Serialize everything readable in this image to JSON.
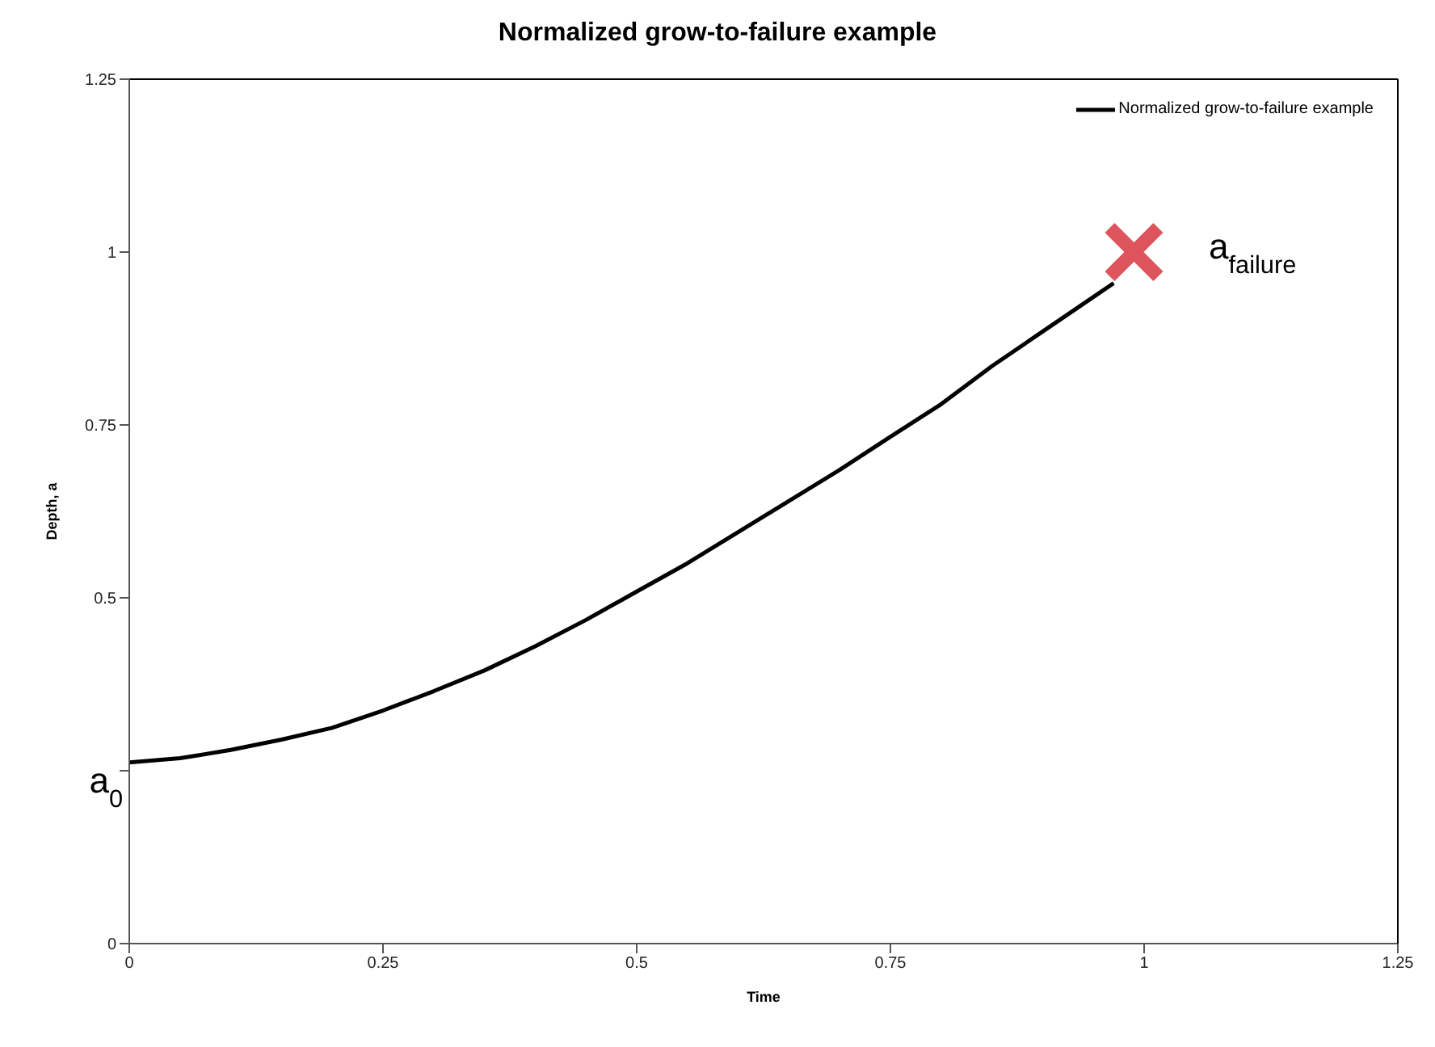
{
  "chart_data": {
    "type": "line",
    "title": "Normalized grow-to-failure example",
    "xlabel": "Time",
    "ylabel": "Depth, a",
    "xlim": [
      0,
      1.25
    ],
    "xticks": [
      0,
      0.25,
      0.5,
      0.75,
      1,
      1.25
    ],
    "ylim": [
      0,
      1.25
    ],
    "yticks": [
      0,
      {
        "value": 0.25,
        "label": null
      },
      0.5,
      0.75,
      1,
      1.25
    ],
    "legend": "top right",
    "line_style": "solid",
    "marker": "none",
    "series": [
      {
        "name": "Normalized grow-to-failure example",
        "color": "#000000",
        "x": [
          0,
          0.05,
          0.1,
          0.15,
          0.2,
          0.25,
          0.3,
          0.35,
          0.4,
          0.45,
          0.5,
          0.55,
          0.6,
          0.65,
          0.7,
          0.75,
          0.8,
          0.85,
          0.9,
          0.95,
          0.97
        ],
        "values": [
          0.262,
          0.268,
          0.28,
          0.295,
          0.312,
          0.337,
          0.365,
          0.395,
          0.43,
          0.468,
          0.509,
          0.55,
          0.595,
          0.64,
          0.685,
          0.733,
          0.78,
          0.835,
          0.885,
          0.935,
          0.955
        ]
      },
      {
        "type": "scatter",
        "marker": "cross",
        "color": "#d9414a",
        "x": [
          0.99
        ],
        "values": [
          1
        ]
      }
    ],
    "annotations": [
      {
        "text": "a$_{0}$",
        "x": 0,
        "y": 0.26
      },
      {
        "text": "a$_{failure}$",
        "x": 1,
        "y": 1
      }
    ]
  }
}
